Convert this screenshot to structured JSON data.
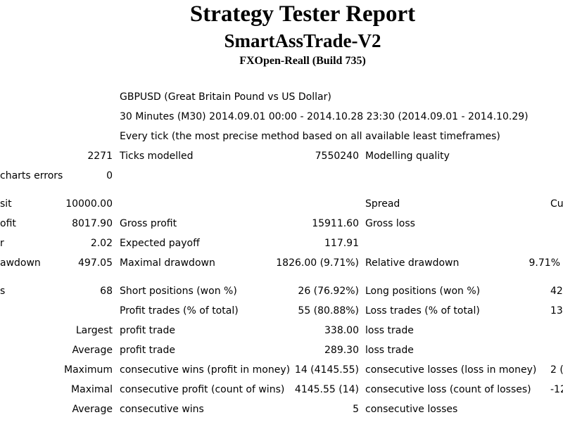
{
  "header": {
    "title": "Strategy Tester Report",
    "expert": "SmartAssTrade-V2",
    "server": "FXOpen-Reall (Build 735)"
  },
  "info": {
    "symbol": "GBPUSD (Great Britain Pound vs US Dollar)",
    "period": "30 Minutes (M30) 2014.09.01 00:00 - 2014.10.28 23:30 (2014.09.01 - 2014.10.29)",
    "model": "Every tick (the most precise method based on all available least timeframes)"
  },
  "rows": {
    "bars": {
      "value": "2271",
      "label": "Ticks modelled",
      "value2": "7550240",
      "label2": "Modelling quality"
    },
    "mismatch": {
      "label": "charts errors",
      "value": "0"
    },
    "deposit": {
      "label": "sit",
      "value": "10000.00",
      "label3": "Spread",
      "label4": "Cu"
    },
    "netprofit": {
      "label": "ofit",
      "value": "8017.90",
      "label2": "Gross profit",
      "value2": "15911.60",
      "label3": "Gross loss"
    },
    "factor": {
      "label": "r",
      "value": "2.02",
      "label2": "Expected payoff",
      "value2": "117.91"
    },
    "drawdown": {
      "label": "awdown",
      "value": "497.05",
      "label2": "Maximal drawdown",
      "value2": "1826.00 (9.71%)",
      "label3": "Relative drawdown",
      "value3": "9.71%"
    },
    "trades": {
      "label": "s",
      "value": "68",
      "label2": "Short positions (won %)",
      "value2": "26 (76.92%)",
      "label3": "Long positions (won %)",
      "value3": "42"
    },
    "profittrades": {
      "label2": "Profit trades (% of total)",
      "value2": "55 (80.88%)",
      "label3": "Loss trades (% of total)",
      "value3": "13"
    },
    "largest": {
      "value": "Largest",
      "label2": "profit trade",
      "value2": "338.00",
      "label3": "loss trade"
    },
    "average": {
      "value": "Average",
      "label2": "profit trade",
      "value2": "289.30",
      "label3": "loss trade"
    },
    "maximum": {
      "value": "Maximum",
      "label2": "consecutive wins (profit in money)",
      "value2": "14 (4145.55)",
      "label3": "consecutive losses (loss in money)",
      "value3": "2 ("
    },
    "maximal": {
      "value": "Maximal",
      "label2": "consecutive profit (count of wins)",
      "value2": "4145.55 (14)",
      "label3": "consecutive loss (count of losses)",
      "value3": "-12"
    },
    "average2": {
      "value": "Average",
      "label2": "consecutive wins",
      "value2": "5",
      "label3": "consecutive losses"
    }
  }
}
